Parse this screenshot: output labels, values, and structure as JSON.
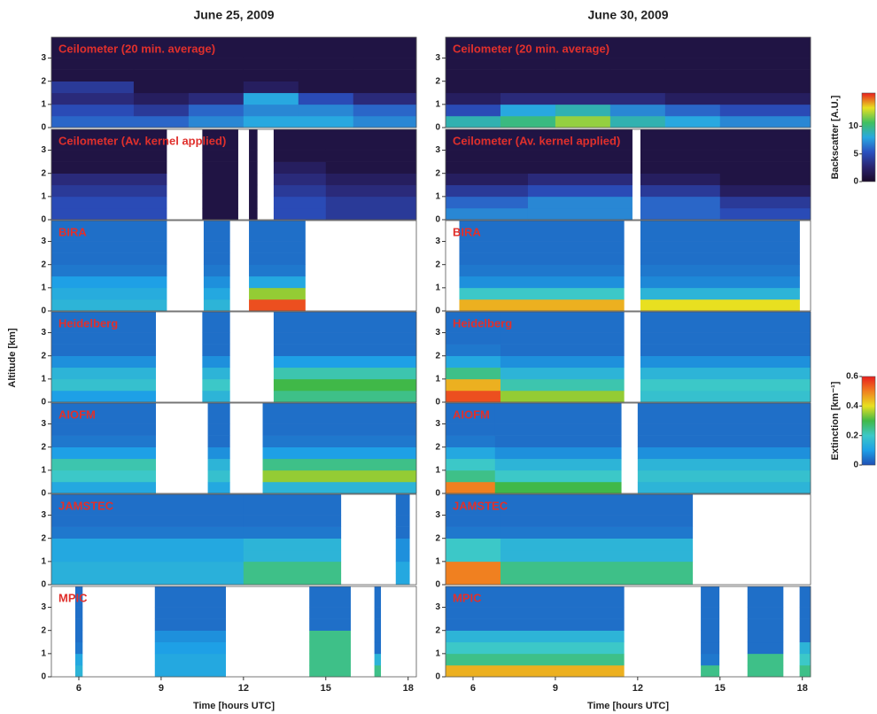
{
  "chart_data": {
    "type": "heatmap",
    "ylabel": "Altitude [km]",
    "xlabel": "Time [hours UTC]",
    "xlim": [
      5,
      18.3
    ],
    "xticks": [
      6,
      9,
      12,
      15,
      18
    ],
    "ylim": [
      0,
      3.9
    ],
    "yticks": [
      0,
      1,
      2,
      3
    ],
    "y_edges": [
      0,
      0.5,
      1,
      1.5,
      2,
      2.5,
      3,
      3.9
    ],
    "colorbars": [
      {
        "label": "Backscatter [A.U.]",
        "zlim": [
          0,
          16
        ],
        "ticks": [
          0,
          5,
          10
        ],
        "colormap": [
          "#1a0a2a",
          "#2a2470",
          "#2a50c0",
          "#28a8e0",
          "#40c060",
          "#e8e020",
          "#e81e1e"
        ]
      },
      {
        "label": "Extinction [km⁻¹]",
        "zlim": [
          0,
          0.6
        ],
        "ticks": [
          0,
          0.2,
          0.4,
          0.6
        ],
        "colormap": [
          "#1f4fb4",
          "#1ea0e6",
          "#3cc8c8",
          "#40b848",
          "#e8e020",
          "#f08020",
          "#e81e1e"
        ]
      }
    ],
    "label_color": "#e0302c",
    "columns": [
      {
        "title": "June 25, 2009",
        "panels": [
          {
            "name": "Ceilometer (20 min. average)",
            "colorbar": 0,
            "x_edges": [
              5,
              8,
              10,
              12,
              14,
              16,
              18.3
            ],
            "z": [
              [
                6,
                5,
                3,
                4,
                1,
                1,
                1
              ],
              [
                6,
                4,
                2,
                1,
                1,
                1,
                1
              ],
              [
                7,
                6,
                3,
                1,
                1,
                1,
                1
              ],
              [
                8,
                7,
                8,
                2,
                1,
                1,
                1
              ],
              [
                8,
                7,
                5,
                1,
                1,
                1,
                1
              ],
              [
                7,
                6,
                3,
                1,
                1,
                1,
                1
              ]
            ]
          },
          {
            "name": "Ceilometer (Av. kernel applied)",
            "colorbar": 0,
            "x_edges": [
              5,
              9.2,
              10.5,
              11.8,
              12.2,
              12.5,
              13.1,
              15,
              18.3
            ],
            "z": [
              [
                5,
                5,
                4,
                3,
                1,
                1,
                1
              ],
              null,
              [
                1,
                1,
                1,
                1,
                1,
                1,
                1
              ],
              null,
              [
                1,
                1,
                1,
                1,
                1,
                1,
                1
              ],
              null,
              [
                5,
                5,
                4,
                3,
                2,
                1,
                1
              ],
              [
                4,
                4,
                3,
                2,
                1,
                1,
                1
              ]
            ]
          },
          {
            "name": "BIRA",
            "colorbar": 1,
            "x_edges": [
              5,
              9.2,
              10.55,
              11.5,
              12.2,
              14.25,
              18.3
            ],
            "z": [
              [
                0.15,
                0.13,
                0.1,
                0.05,
                0.04,
                0.04,
                0.04
              ],
              null,
              [
                0.15,
                0.12,
                0.08,
                0.05,
                0.04,
                0.04,
                0.04
              ],
              null,
              [
                0.55,
                0.35,
                0.12,
                0.05,
                0.04,
                0.04,
                0.04
              ],
              null
            ]
          },
          {
            "name": "Heidelberg",
            "colorbar": 1,
            "x_edges": [
              5,
              8.8,
              10.5,
              11.5,
              13.1,
              18.3
            ],
            "z": [
              [
                0.1,
                0.18,
                0.15,
                0.08,
                0.04,
                0.04,
                0.04
              ],
              null,
              [
                0.15,
                0.2,
                0.15,
                0.08,
                0.04,
                0.04,
                0.04
              ],
              null,
              [
                0.25,
                0.3,
                0.22,
                0.1,
                0.04,
                0.04,
                0.04
              ]
            ]
          },
          {
            "name": "AIOFM",
            "colorbar": 1,
            "x_edges": [
              5,
              8.8,
              10.7,
              11.5,
              12.7,
              18.3
            ],
            "z": [
              [
                0.12,
                0.2,
                0.22,
                0.1,
                0.05,
                0.04,
                0.04
              ],
              null,
              [
                0.12,
                0.18,
                0.15,
                0.08,
                0.04,
                0.04,
                0.04
              ],
              null,
              [
                0.15,
                0.35,
                0.25,
                0.1,
                0.05,
                0.04,
                0.04
              ]
            ]
          },
          {
            "name": "JAMSTEC",
            "colorbar": 1,
            "x_edges": [
              5,
              12,
              15.55,
              17.55,
              18.05,
              18.3
            ],
            "z": [
              [
                0.14,
                0.14,
                0.12,
                0.12,
                0.05,
                0.04,
                0.04
              ],
              [
                0.25,
                0.25,
                0.15,
                0.15,
                0.05,
                0.04,
                0.04
              ],
              null,
              [
                0.12,
                0.12,
                0.08,
                0.08,
                0.04,
                0.04,
                0.04
              ],
              null
            ]
          },
          {
            "name": "MPIC",
            "colorbar": 1,
            "x_edges": [
              5,
              5.87,
              6.13,
              8.77,
              11.35,
              14.4,
              15.9,
              16.77,
              17,
              18.3
            ],
            "z": [
              null,
              [
                0.15,
                0.12,
                0.05,
                0.04,
                0.04,
                0.04,
                0.04
              ],
              null,
              [
                0.12,
                0.12,
                0.1,
                0.08,
                0.04,
                0.04,
                0.04
              ],
              null,
              [
                0.25,
                0.25,
                0.25,
                0.25,
                0.04,
                0.04,
                0.04
              ],
              null,
              [
                0.25,
                0.15,
                0.04,
                0.04,
                0.04,
                0.04,
                0.04
              ],
              null
            ]
          }
        ]
      },
      {
        "title": "June 30, 2009",
        "panels": [
          {
            "name": "Ceilometer (20 min. average)",
            "colorbar": 0,
            "x_edges": [
              5,
              7,
              9,
              11,
              13,
              15,
              18.3
            ],
            "z": [
              [
                9,
                5,
                2,
                1,
                1,
                1,
                1
              ],
              [
                10,
                8,
                3,
                1,
                1,
                1,
                1
              ],
              [
                12,
                9,
                3,
                1,
                1,
                1,
                1
              ],
              [
                9,
                7,
                3,
                1,
                1,
                1,
                1
              ],
              [
                8,
                6,
                2,
                1,
                1,
                1,
                1
              ],
              [
                7,
                5,
                2,
                1,
                1,
                1,
                1
              ]
            ]
          },
          {
            "name": "Ceilometer (Av. kernel applied)",
            "colorbar": 0,
            "x_edges": [
              5,
              8,
              11.8,
              12.1,
              15,
              18.3
            ],
            "z": [
              [
                7,
                6,
                4,
                2,
                1,
                1,
                1
              ],
              [
                7,
                7,
                5,
                3,
                1,
                1,
                1
              ],
              null,
              [
                6,
                6,
                4,
                2,
                1,
                1,
                1
              ],
              [
                5,
                4,
                2,
                1,
                1,
                1,
                1
              ]
            ]
          },
          {
            "name": "BIRA",
            "colorbar": 1,
            "x_edges": [
              5,
              5.5,
              11.5,
              12.1,
              17.9,
              18.3
            ],
            "z": [
              null,
              [
                0.45,
                0.2,
                0.08,
                0.05,
                0.04,
                0.04,
                0.04
              ],
              null,
              [
                0.4,
                0.15,
                0.07,
                0.05,
                0.04,
                0.04,
                0.04
              ],
              null
            ]
          },
          {
            "name": "Heidelberg",
            "colorbar": 1,
            "x_edges": [
              5,
              7,
              11.5,
              12.1,
              18.3
            ],
            "z": [
              [
                0.55,
                0.45,
                0.25,
                0.12,
                0.05,
                0.04,
                0.04
              ],
              [
                0.35,
                0.22,
                0.15,
                0.08,
                0.04,
                0.04,
                0.04
              ],
              null,
              [
                0.18,
                0.2,
                0.15,
                0.08,
                0.04,
                0.04,
                0.04
              ]
            ]
          },
          {
            "name": "AIOFM",
            "colorbar": 1,
            "x_edges": [
              5,
              6.8,
              11.4,
              12,
              18.3
            ],
            "z": [
              [
                0.5,
                0.25,
                0.2,
                0.12,
                0.05,
                0.04,
                0.04
              ],
              [
                0.3,
                0.2,
                0.15,
                0.08,
                0.04,
                0.04,
                0.04
              ],
              null,
              [
                0.15,
                0.18,
                0.15,
                0.08,
                0.04,
                0.04,
                0.04
              ]
            ]
          },
          {
            "name": "JAMSTEC",
            "colorbar": 1,
            "x_edges": [
              5,
              7,
              14,
              18.3
            ],
            "z": [
              [
                0.5,
                0.5,
                0.2,
                0.2,
                0.05,
                0.04,
                0.04
              ],
              [
                0.25,
                0.25,
                0.15,
                0.15,
                0.05,
                0.04,
                0.04
              ],
              null
            ]
          },
          {
            "name": "MPIC",
            "colorbar": 1,
            "x_edges": [
              5,
              11.5,
              14.3,
              14.97,
              16,
              17.3,
              17.9,
              18.3
            ],
            "z": [
              [
                0.45,
                0.25,
                0.2,
                0.15,
                0.04,
                0.04,
                0.04
              ],
              null,
              [
                0.25,
                0.05,
                0.04,
                0.04,
                0.04,
                0.04,
                0.04
              ],
              null,
              [
                0.25,
                0.25,
                0.04,
                0.04,
                0.04,
                0.04,
                0.04
              ],
              null,
              [
                0.25,
                0.2,
                0.15,
                0.04,
                0.04,
                0.04,
                0.04
              ]
            ]
          }
        ]
      }
    ]
  }
}
